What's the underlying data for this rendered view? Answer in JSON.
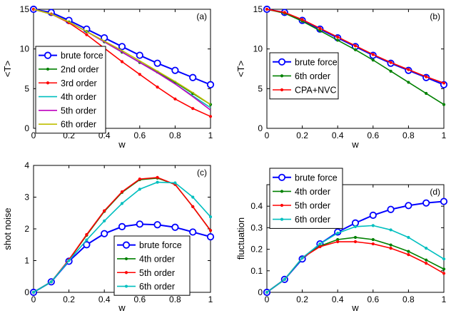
{
  "chart_data": [
    {
      "type": "line",
      "panel_label": "(a)",
      "xlabel": "w",
      "ylabel": "<T>",
      "xlim": [
        0,
        1
      ],
      "ylim": [
        0,
        15
      ],
      "xticks": [
        "0",
        "0.2",
        "0.4",
        "0.6",
        "0.8",
        "1"
      ],
      "yticks": [
        "0",
        "5",
        "10",
        "15"
      ],
      "legend_position": "bottom-left",
      "x": [
        0,
        0.1,
        0.2,
        0.3,
        0.4,
        0.5,
        0.6,
        0.7,
        0.8,
        0.9,
        1.0
      ],
      "series": [
        {
          "name": "brute force",
          "color": "#0000ff",
          "marker": "circle",
          "values": [
            15,
            14.6,
            13.6,
            12.5,
            11.4,
            10.3,
            9.2,
            8.2,
            7.3,
            6.4,
            5.5
          ]
        },
        {
          "name": "2nd order",
          "color": "#008000",
          "marker": "dot",
          "values": [
            15,
            14.4,
            13.4,
            12.2,
            10.9,
            9.6,
            8.3,
            7.1,
            5.8,
            4.4,
            3.0
          ]
        },
        {
          "name": "3rd order",
          "color": "#ff0000",
          "marker": "dot",
          "values": [
            15,
            14.4,
            13.3,
            11.8,
            10.1,
            8.4,
            6.8,
            5.2,
            3.7,
            2.5,
            1.5
          ]
        },
        {
          "name": "4th order",
          "color": "#00bfbf",
          "marker": "none",
          "values": [
            15,
            14.4,
            13.4,
            12.2,
            10.9,
            9.6,
            8.3,
            7.0,
            5.6,
            4.1,
            2.6
          ]
        },
        {
          "name": "5th order",
          "color": "#bf00bf",
          "marker": "none",
          "values": [
            15,
            14.4,
            13.4,
            12.2,
            10.9,
            9.6,
            8.3,
            7.0,
            5.6,
            4.0,
            2.3
          ]
        },
        {
          "name": "6th order",
          "color": "#bfbf00",
          "marker": "none",
          "values": [
            15,
            14.4,
            13.4,
            12.2,
            11.0,
            9.8,
            8.5,
            7.2,
            5.9,
            4.5,
            3.0
          ]
        }
      ]
    },
    {
      "type": "line",
      "panel_label": "(b)",
      "xlabel": "w",
      "ylabel": "<T>",
      "xlim": [
        0,
        1
      ],
      "ylim": [
        0,
        15
      ],
      "xticks": [
        "0",
        "0.2",
        "0.4",
        "0.6",
        "0.8",
        "1"
      ],
      "yticks": [
        "0",
        "5",
        "10",
        "15"
      ],
      "legend_position": "bottom-left",
      "x": [
        0,
        0.1,
        0.2,
        0.3,
        0.4,
        0.5,
        0.6,
        0.7,
        0.8,
        0.9,
        1.0
      ],
      "series": [
        {
          "name": "brute force",
          "color": "#0000ff",
          "marker": "circle",
          "values": [
            15,
            14.6,
            13.6,
            12.5,
            11.4,
            10.3,
            9.2,
            8.2,
            7.3,
            6.4,
            5.5
          ]
        },
        {
          "name": "6th order",
          "color": "#008000",
          "marker": "dot",
          "values": [
            15,
            14.5,
            13.5,
            12.3,
            11.1,
            9.9,
            8.6,
            7.2,
            5.8,
            4.4,
            3.0
          ]
        },
        {
          "name": "CPA+NVC",
          "color": "#ff0000",
          "marker": "dot",
          "values": [
            15,
            14.6,
            13.7,
            12.6,
            11.5,
            10.4,
            9.3,
            8.3,
            7.4,
            6.5,
            5.7
          ]
        }
      ]
    },
    {
      "type": "line",
      "panel_label": "(c)",
      "xlabel": "w",
      "ylabel": "shot noise",
      "xlim": [
        0,
        1
      ],
      "ylim": [
        0,
        4
      ],
      "xticks": [
        "0",
        "0.2",
        "0.4",
        "0.6",
        "0.8",
        "1"
      ],
      "yticks": [
        "0",
        "1",
        "2",
        "3",
        "4"
      ],
      "legend_position": "bottom-right",
      "x": [
        0,
        0.1,
        0.2,
        0.3,
        0.4,
        0.5,
        0.6,
        0.7,
        0.8,
        0.9,
        1.0
      ],
      "series": [
        {
          "name": "brute force",
          "color": "#0000ff",
          "marker": "circle",
          "values": [
            0,
            0.33,
            0.98,
            1.5,
            1.85,
            2.07,
            2.15,
            2.13,
            2.05,
            1.9,
            1.75
          ]
        },
        {
          "name": "4th order",
          "color": "#008000",
          "marker": "dot",
          "values": [
            0,
            0.33,
            1.02,
            1.8,
            2.55,
            3.15,
            3.55,
            3.6,
            3.4,
            2.7,
            1.95
          ]
        },
        {
          "name": "5th order",
          "color": "#ff0000",
          "marker": "dot",
          "values": [
            0,
            0.33,
            1.03,
            1.82,
            2.57,
            3.17,
            3.57,
            3.62,
            3.4,
            2.7,
            1.95
          ]
        },
        {
          "name": "6th order",
          "color": "#00bfbf",
          "marker": "dot",
          "values": [
            0,
            0.33,
            1.0,
            1.65,
            2.25,
            2.8,
            3.25,
            3.47,
            3.45,
            3.0,
            2.38
          ]
        }
      ]
    },
    {
      "type": "line",
      "panel_label": "(d)",
      "xlabel": "w",
      "ylabel": "fluctuation",
      "xlim": [
        0,
        1
      ],
      "ylim": [
        0,
        0.5
      ],
      "xticks": [
        "0",
        "0.2",
        "0.4",
        "0.6",
        "0.8",
        "1"
      ],
      "yticks": [
        "0",
        "0.1",
        "0.2",
        "0.3",
        "0.4"
      ],
      "legend_position": "top-left",
      "x": [
        0,
        0.1,
        0.2,
        0.3,
        0.4,
        0.5,
        0.6,
        0.7,
        0.8,
        0.9,
        1.0
      ],
      "series": [
        {
          "name": "brute force",
          "color": "#0000ff",
          "marker": "circle",
          "values": [
            0,
            0.06,
            0.155,
            0.225,
            0.28,
            0.322,
            0.358,
            0.385,
            0.403,
            0.415,
            0.422
          ]
        },
        {
          "name": "4th order",
          "color": "#008000",
          "marker": "dot",
          "values": [
            0,
            0.06,
            0.16,
            0.215,
            0.245,
            0.255,
            0.245,
            0.22,
            0.19,
            0.15,
            0.108
          ]
        },
        {
          "name": "5th order",
          "color": "#ff0000",
          "marker": "dot",
          "values": [
            0,
            0.06,
            0.16,
            0.212,
            0.235,
            0.235,
            0.225,
            0.205,
            0.175,
            0.135,
            0.088
          ]
        },
        {
          "name": "6th order",
          "color": "#00bfbf",
          "marker": "dot",
          "values": [
            0,
            0.06,
            0.16,
            0.225,
            0.275,
            0.305,
            0.31,
            0.29,
            0.255,
            0.205,
            0.155
          ]
        }
      ]
    }
  ]
}
